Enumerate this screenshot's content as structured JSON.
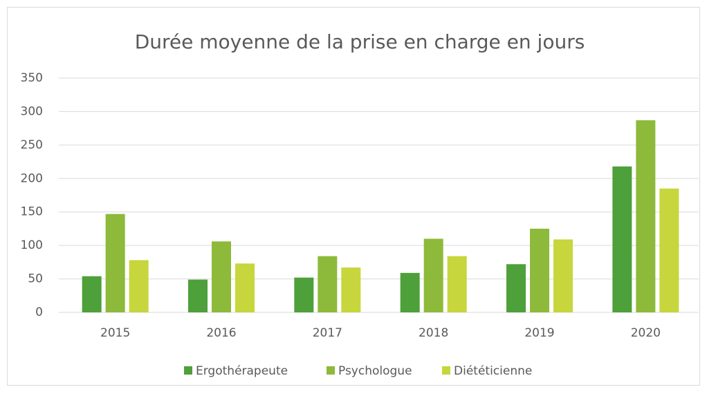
{
  "chart_data": {
    "type": "bar",
    "title": "Durée moyenne de la prise en charge en jours",
    "categories": [
      "2015",
      "2016",
      "2017",
      "2018",
      "2019",
      "2020"
    ],
    "series": [
      {
        "name": "Ergothérapeute",
        "color": "#4ea03a",
        "values": [
          54,
          49,
          52,
          59,
          72,
          218
        ]
      },
      {
        "name": "Psychologue",
        "color": "#8dba3a",
        "values": [
          147,
          106,
          84,
          110,
          125,
          287
        ]
      },
      {
        "name": "Diététicienne",
        "color": "#c6d63c",
        "values": [
          78,
          73,
          67,
          84,
          109,
          185
        ]
      }
    ],
    "ylim": [
      0,
      350
    ],
    "yticks": [
      0,
      50,
      100,
      150,
      200,
      250,
      300,
      350
    ],
    "grid": true,
    "legend": "bottom"
  }
}
